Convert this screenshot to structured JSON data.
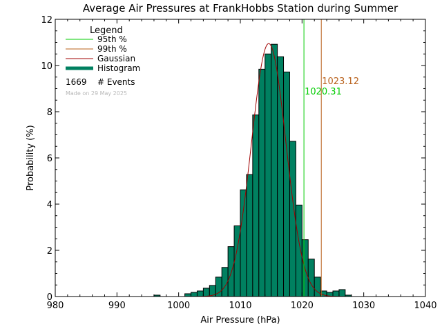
{
  "chart_data": {
    "type": "bar",
    "title": "Average Air Pressures at FrankHobbs Station during Summer",
    "xlabel": "Air Pressure (hPa)",
    "ylabel": "Probability (%)",
    "xlim": [
      980,
      1040
    ],
    "ylim": [
      0,
      12
    ],
    "xticks": [
      "980",
      "990",
      "1000",
      "1010",
      "1020",
      "1030",
      "1040"
    ],
    "yticks": [
      "0",
      "2",
      "4",
      "6",
      "8",
      "10",
      "12"
    ],
    "bin_width": 1,
    "bins": [
      {
        "x0": 996,
        "value": 0.06
      },
      {
        "x0": 997,
        "value": 0.0
      },
      {
        "x0": 998,
        "value": 0.0
      },
      {
        "x0": 999,
        "value": 0.0
      },
      {
        "x0": 1000,
        "value": 0.0
      },
      {
        "x0": 1001,
        "value": 0.12
      },
      {
        "x0": 1002,
        "value": 0.18
      },
      {
        "x0": 1003,
        "value": 0.24
      },
      {
        "x0": 1004,
        "value": 0.36
      },
      {
        "x0": 1005,
        "value": 0.48
      },
      {
        "x0": 1006,
        "value": 0.84
      },
      {
        "x0": 1007,
        "value": 1.26
      },
      {
        "x0": 1008,
        "value": 2.16
      },
      {
        "x0": 1009,
        "value": 3.06
      },
      {
        "x0": 1010,
        "value": 4.62
      },
      {
        "x0": 1011,
        "value": 5.28
      },
      {
        "x0": 1012,
        "value": 7.86
      },
      {
        "x0": 1013,
        "value": 9.84
      },
      {
        "x0": 1014,
        "value": 10.5
      },
      {
        "x0": 1015,
        "value": 10.92
      },
      {
        "x0": 1016,
        "value": 10.38
      },
      {
        "x0": 1017,
        "value": 9.72
      },
      {
        "x0": 1018,
        "value": 6.72
      },
      {
        "x0": 1019,
        "value": 3.96
      },
      {
        "x0": 1020,
        "value": 2.46
      },
      {
        "x0": 1021,
        "value": 1.62
      },
      {
        "x0": 1022,
        "value": 0.84
      },
      {
        "x0": 1023,
        "value": 0.24
      },
      {
        "x0": 1024,
        "value": 0.18
      },
      {
        "x0": 1025,
        "value": 0.24
      },
      {
        "x0": 1026,
        "value": 0.3
      },
      {
        "x0": 1027,
        "value": 0.06
      }
    ],
    "gaussian": {
      "mean": 1014.6,
      "sigma": 2.8,
      "peak": 10.95
    },
    "percentiles": [
      {
        "name": "95th %",
        "value": 1020.31,
        "label": "1020.31",
        "color": "#00cc00"
      },
      {
        "name": "99th %",
        "value": 1023.12,
        "label": "1023.12",
        "color": "#b8601a"
      }
    ],
    "legend": {
      "title": "Legend",
      "placement": "top-left",
      "items": [
        {
          "label": "95th %",
          "color": "#00cc00"
        },
        {
          "label": "99th %",
          "color": "#b8601a"
        },
        {
          "label": "Gaussian",
          "color": "#a00000"
        },
        {
          "label": "Histogram",
          "color": "#008060"
        }
      ],
      "events_count": "1669",
      "events_label": "# Events"
    },
    "made_on": "Made on 29 May 2025",
    "colors": {
      "histogram": "#008060",
      "gaussian": "#a00000",
      "axis": "#000000"
    },
    "grid": false
  }
}
